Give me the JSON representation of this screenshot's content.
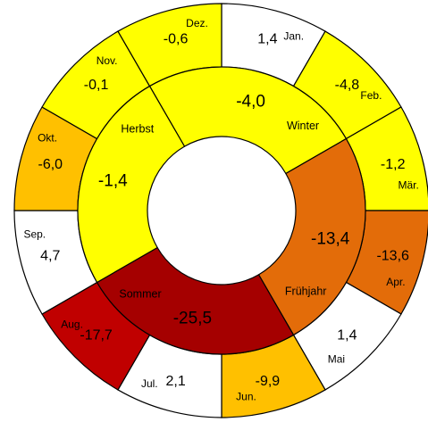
{
  "chart_data": {
    "type": "sunburst",
    "colors": {
      "white": "#ffffff",
      "yellow": "#ffff00",
      "amber": "#ffc000",
      "orange": "#e36c09",
      "red": "#c00000",
      "darkred": "#a50000"
    },
    "seasons": [
      {
        "name": "Winter",
        "value": "-4,0",
        "num": -4.0,
        "color": "#ffff00"
      },
      {
        "name": "Frühjahr",
        "value": "-13,4",
        "num": -13.4,
        "color": "#e36c09"
      },
      {
        "name": "Sommer",
        "value": "-25,5",
        "num": -25.5,
        "color": "#a50000"
      },
      {
        "name": "Herbst",
        "value": "-1,4",
        "num": -1.4,
        "color": "#ffff00"
      }
    ],
    "months": [
      {
        "name": "Jan.",
        "value": "1,4",
        "num": 1.4,
        "color": "#ffffff"
      },
      {
        "name": "Feb.",
        "value": "-4,8",
        "num": -4.8,
        "color": "#ffff00"
      },
      {
        "name": "Mär.",
        "value": "-1,2",
        "num": -1.2,
        "color": "#ffff00"
      },
      {
        "name": "Apr.",
        "value": "-13,6",
        "num": -13.6,
        "color": "#e36c09"
      },
      {
        "name": "Mai",
        "value": "1,4",
        "num": 1.4,
        "color": "#ffffff"
      },
      {
        "name": "Jun.",
        "value": "-9,9",
        "num": -9.9,
        "color": "#ffc000"
      },
      {
        "name": "Jul.",
        "value": "2,1",
        "num": 2.1,
        "color": "#ffffff"
      },
      {
        "name": "Aug.",
        "value": "-17,7",
        "num": -17.7,
        "color": "#c00000"
      },
      {
        "name": "Sep.",
        "value": "4,7",
        "num": 4.7,
        "color": "#ffffff"
      },
      {
        "name": "Okt.",
        "value": "-6,0",
        "num": -6.0,
        "color": "#ffc000"
      },
      {
        "name": "Nov.",
        "value": "-0,1",
        "num": -0.1,
        "color": "#ffff00"
      },
      {
        "name": "Dez.",
        "value": "-0,6",
        "num": -0.6,
        "color": "#ffff00"
      }
    ]
  }
}
